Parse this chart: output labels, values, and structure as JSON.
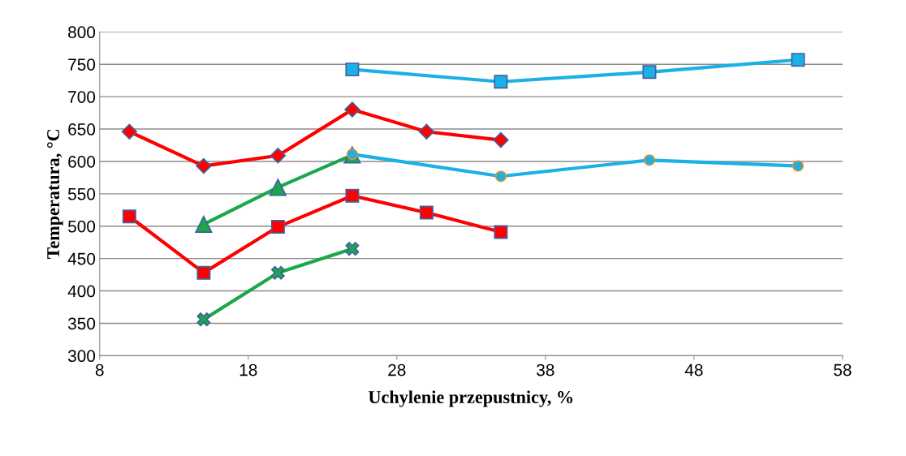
{
  "chart_data": {
    "type": "line",
    "xlabel": "Uchylenie przepustnicy, %",
    "ylabel": "Temperatura, °C",
    "xlim": [
      8,
      58
    ],
    "xticks": [
      8,
      18,
      28,
      38,
      48,
      58
    ],
    "ylim": [
      300,
      800
    ],
    "yticks": [
      300,
      350,
      400,
      450,
      500,
      550,
      600,
      650,
      700,
      750,
      800
    ],
    "grid": "y",
    "legend": false,
    "line_style": "solid",
    "series": [
      {
        "color": "#1cb0e8",
        "marker": "square",
        "x": [
          25,
          35,
          45,
          55
        ],
        "values": [
          742,
          723,
          738,
          757
        ]
      },
      {
        "color": "#ff0000",
        "marker": "diamond",
        "x": [
          10,
          15,
          20,
          25,
          30,
          35
        ],
        "values": [
          646,
          593,
          609,
          680,
          646,
          633
        ]
      },
      {
        "color": "#1aa84a",
        "marker": "triangle",
        "x": [
          15,
          20,
          25
        ],
        "values": [
          503,
          560,
          610
        ]
      },
      {
        "color": "#1cb0e8",
        "marker": "circle",
        "x": [
          25,
          35,
          45,
          55
        ],
        "values": [
          611,
          577,
          602,
          593
        ]
      },
      {
        "color": "#ff0000",
        "marker": "square",
        "x": [
          10,
          15,
          20,
          25,
          30,
          35
        ],
        "values": [
          515,
          428,
          499,
          547,
          521,
          491
        ]
      },
      {
        "color": "#1aa84a",
        "marker": "cross",
        "x": [
          15,
          20,
          25
        ],
        "values": [
          356,
          428,
          465
        ]
      }
    ]
  }
}
